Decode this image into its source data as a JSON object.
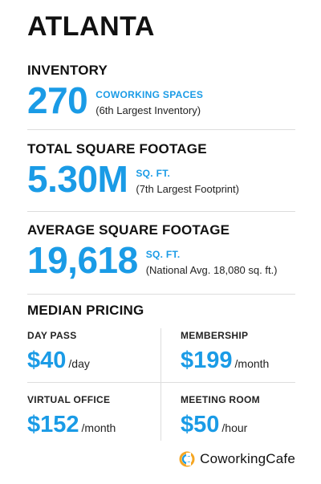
{
  "title": "ATLANTA",
  "inventory": {
    "label": "INVENTORY",
    "value": "270",
    "unit": "COWORKING SPACES",
    "note": "(6th Largest Inventory)"
  },
  "total_sq_ft": {
    "label": "TOTAL SQUARE FOOTAGE",
    "value": "5.30M",
    "unit": "SQ. FT.",
    "note": "(7th Largest Footprint)"
  },
  "average_sq_ft": {
    "label": "AVERAGE SQUARE FOOTAGE",
    "value": "19,618",
    "unit": "SQ. FT.",
    "note": "(National Avg. 18,080 sq. ft.)"
  },
  "median_pricing": {
    "label": "MEDIAN PRICING",
    "items": [
      {
        "label": "DAY PASS",
        "price": "$40",
        "per": "/day"
      },
      {
        "label": "MEMBERSHIP",
        "price": "$199",
        "per": "/month"
      },
      {
        "label": "VIRTUAL OFFICE",
        "price": "$152",
        "per": "/month"
      },
      {
        "label": "MEETING ROOM",
        "price": "$50",
        "per": "/hour"
      }
    ]
  },
  "brand": {
    "name": "CoworkingCafe",
    "icon": "coworkingcafe-logo-icon"
  },
  "colors": {
    "accent": "#1a9be6",
    "text": "#111111",
    "divider": "#dddddd",
    "logo_orange": "#f5a623"
  }
}
